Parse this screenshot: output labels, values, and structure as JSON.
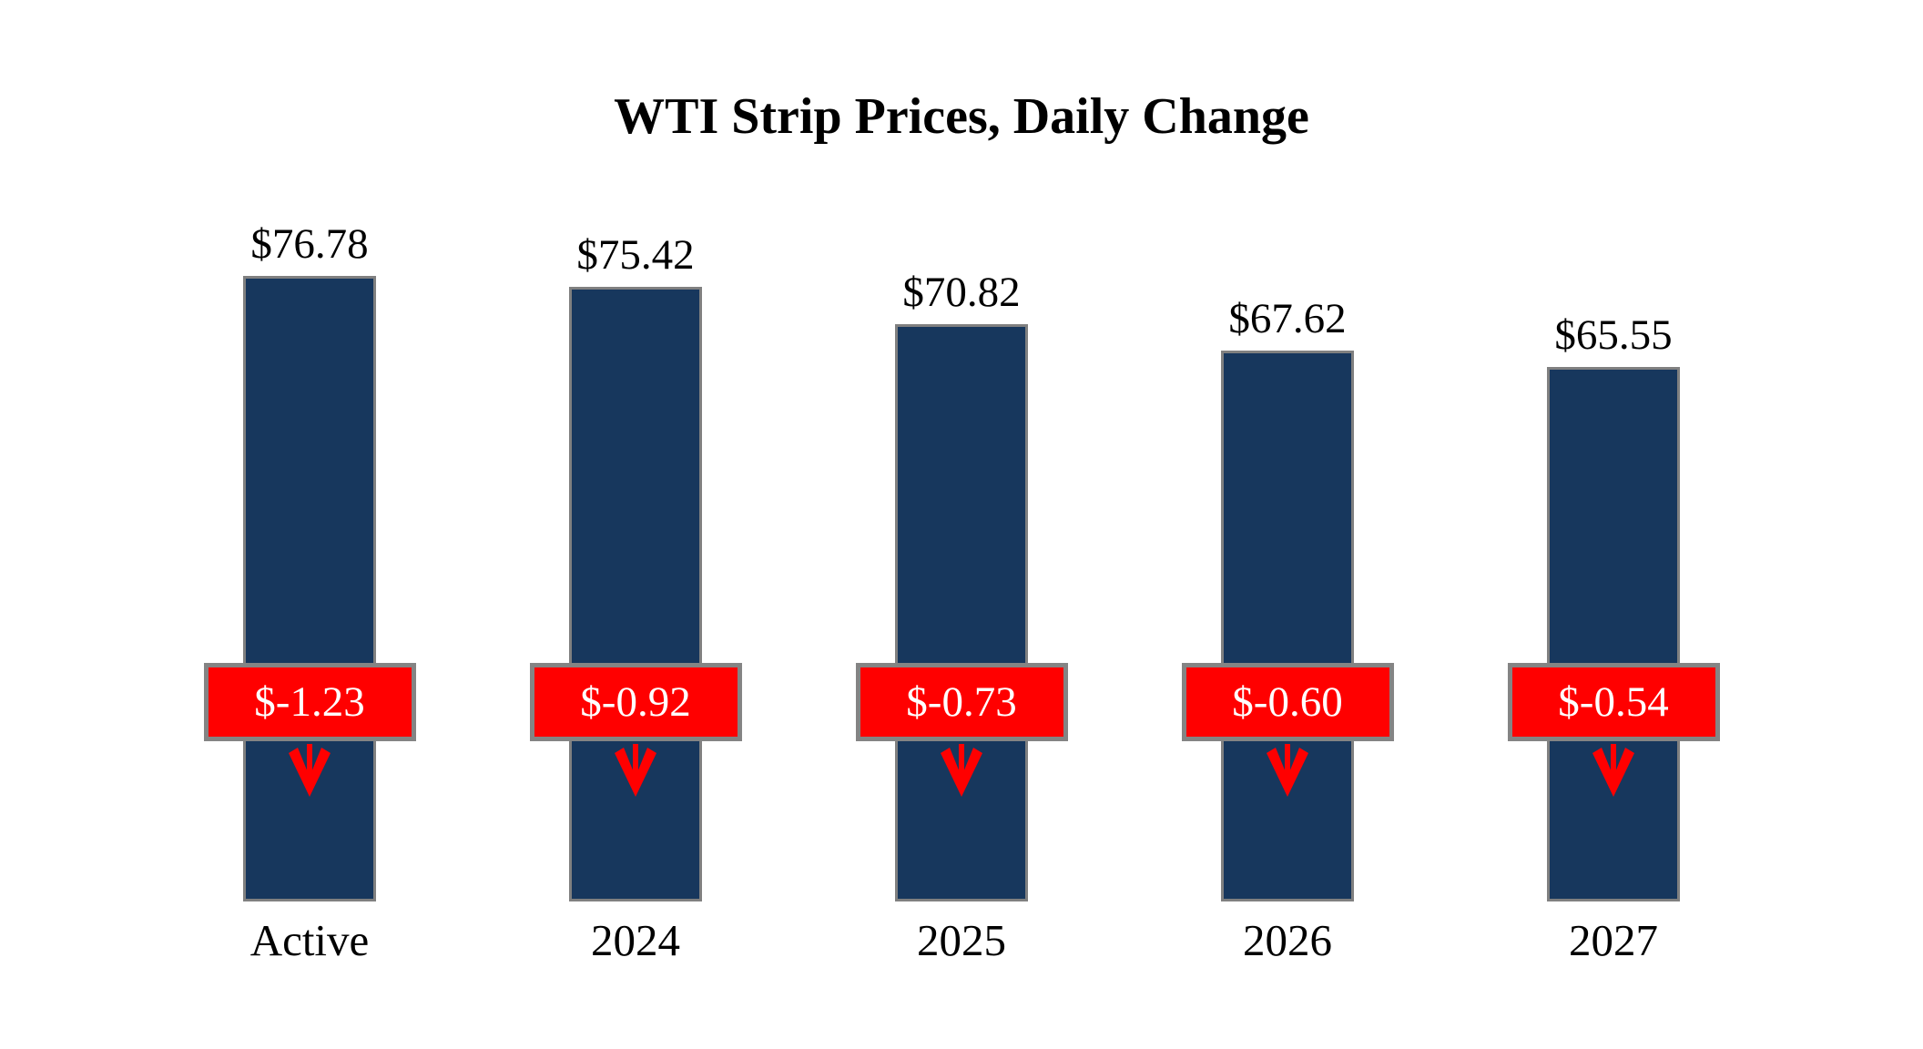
{
  "chart_data": {
    "type": "bar",
    "title": "WTI Strip Prices, Daily Change",
    "categories": [
      "Active",
      "2024",
      "2025",
      "2026",
      "2027"
    ],
    "series": [
      {
        "name": "strip_price",
        "values": [
          76.78,
          75.42,
          70.82,
          67.62,
          65.55
        ]
      },
      {
        "name": "daily_change",
        "values": [
          -1.23,
          -0.92,
          -0.73,
          -0.6,
          -0.54
        ]
      }
    ],
    "value_labels": [
      "$76.78",
      "$75.42",
      "$70.82",
      "$67.62",
      "$65.55"
    ],
    "change_labels": [
      "$-1.23",
      "$-0.92",
      "$-0.73",
      "$-0.60",
      "$-0.54"
    ],
    "ylim": [
      0,
      76.78
    ],
    "axis_hidden": true,
    "grid": false,
    "legend": "none",
    "colors": {
      "bar_fill": "#17375D",
      "bar_border": "#808080",
      "change_box_fill": "#FF0000",
      "change_box_border": "#848484",
      "change_text": "#FFFFFF",
      "arrow": "#FF0000",
      "text": "#000000"
    }
  }
}
